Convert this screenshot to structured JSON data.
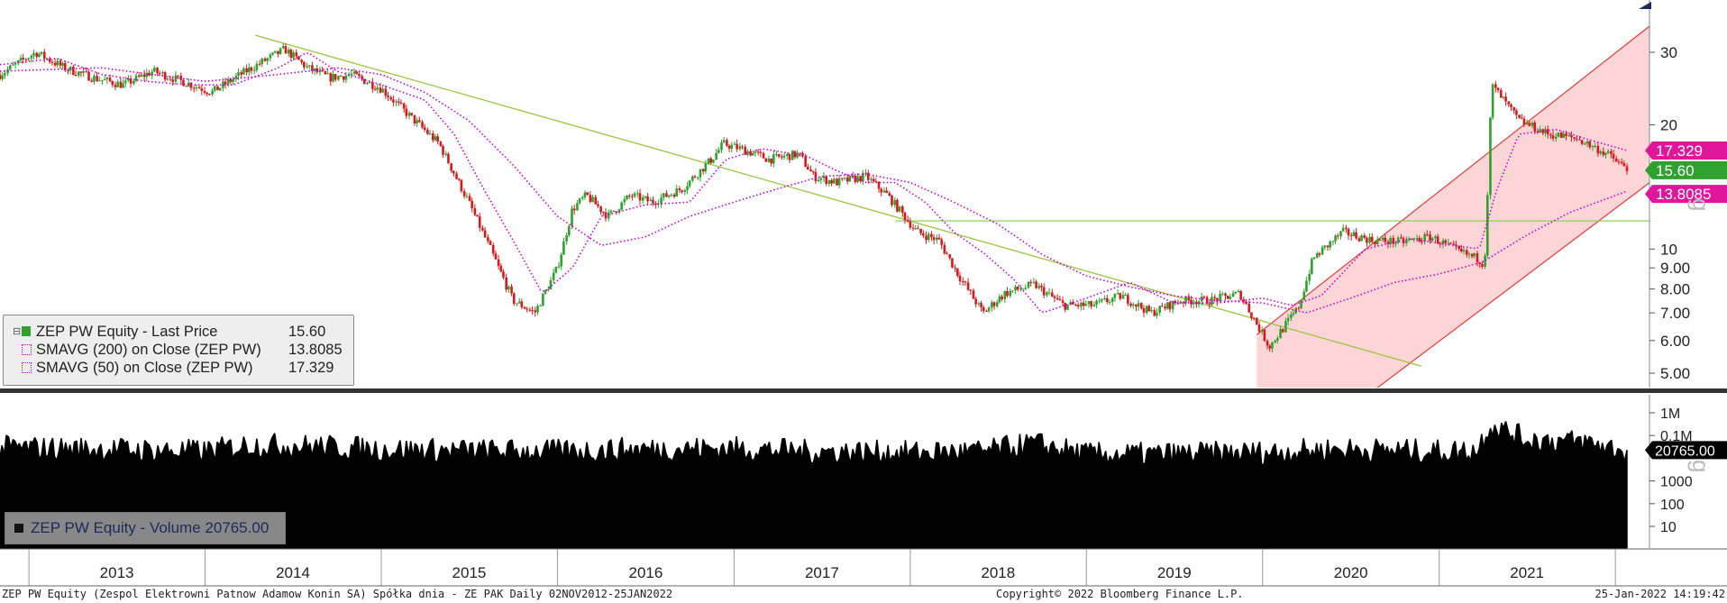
{
  "chart_data": [
    {
      "type": "line",
      "panel": "price",
      "scale": "log",
      "ylim": [
        4.5,
        36
      ],
      "yticks": [
        5,
        6,
        7,
        8,
        9,
        10,
        20,
        30
      ],
      "ytick_labels": [
        "5.00",
        "6.00",
        "7.00",
        "8.00",
        "9.00",
        "10",
        "20",
        "30"
      ],
      "years": [
        "2013",
        "2014",
        "2015",
        "2016",
        "2017",
        "2018",
        "2019",
        "2020",
        "2021"
      ],
      "x_range": [
        "2012-11-02",
        "2022-01-25"
      ],
      "series": [
        {
          "name": "ZEP PW Equity - Last Price",
          "style": "candles",
          "x": [
            "2012-11-02",
            "2013-01-15",
            "2013-03-15",
            "2013-05-15",
            "2013-07-15",
            "2013-09-15",
            "2013-11-15",
            "2014-01-15",
            "2014-03-15",
            "2014-05-01",
            "2014-06-15",
            "2014-08-01",
            "2014-09-15",
            "2014-11-01",
            "2015-01-01",
            "2015-03-01",
            "2015-05-01",
            "2015-07-01",
            "2015-08-15",
            "2015-10-01",
            "2015-11-15",
            "2016-01-01",
            "2016-02-01",
            "2016-03-01",
            "2016-04-15",
            "2016-06-01",
            "2016-07-15",
            "2016-09-15",
            "2016-11-15",
            "2016-12-10",
            "2017-01-15",
            "2017-03-15",
            "2017-05-15",
            "2017-06-15",
            "2017-08-01",
            "2017-10-01",
            "2017-11-15",
            "2018-01-15",
            "2018-03-01",
            "2018-04-15",
            "2018-06-01",
            "2018-07-15",
            "2018-09-15",
            "2018-11-15",
            "2019-01-15",
            "2019-03-15",
            "2019-05-15",
            "2019-07-15",
            "2019-09-15",
            "2019-11-15",
            "2020-01-15",
            "2020-03-15",
            "2020-04-15",
            "2020-06-15",
            "2020-08-15",
            "2020-10-15",
            "2020-12-15",
            "2021-02-15",
            "2021-03-20",
            "2021-04-05",
            "2021-04-20",
            "2021-06-15",
            "2021-08-15",
            "2021-10-15",
            "2021-12-15",
            "2022-01-25"
          ],
          "values": [
            26.5,
            30.0,
            27.5,
            26.0,
            25.0,
            27.0,
            25.5,
            24.0,
            26.5,
            28.5,
            30.5,
            27.5,
            26.0,
            26.5,
            24.5,
            21.0,
            18.0,
            13.0,
            10.0,
            7.5,
            7.0,
            9.0,
            12.5,
            13.5,
            12.0,
            13.5,
            13.0,
            14.0,
            16.5,
            18.0,
            17.5,
            16.5,
            17.0,
            15.0,
            14.5,
            15.0,
            13.5,
            11.0,
            10.5,
            8.5,
            7.0,
            7.8,
            8.2,
            7.3,
            7.3,
            7.7,
            7.0,
            7.5,
            7.5,
            7.8,
            5.8,
            7.2,
            9.5,
            11.0,
            10.5,
            10.4,
            10.7,
            9.8,
            9.5,
            9.2,
            25.0,
            20.5,
            19.0,
            18.5,
            17.0,
            15.6
          ]
        },
        {
          "name": "SMAVG (200)  on Close (ZEP PW)",
          "style": "dotted",
          "x": [
            "2012-11-02",
            "2013-06-01",
            "2014-01-01",
            "2014-06-01",
            "2014-10-01",
            "2015-01-01",
            "2015-04-01",
            "2015-07-01",
            "2015-10-01",
            "2016-01-01",
            "2016-04-01",
            "2016-07-01",
            "2016-10-01",
            "2017-01-01",
            "2017-04-01",
            "2017-07-01",
            "2017-10-01",
            "2018-01-01",
            "2018-04-01",
            "2018-07-01",
            "2018-10-01",
            "2019-01-01",
            "2019-04-01",
            "2019-07-01",
            "2019-10-01",
            "2020-01-01",
            "2020-04-01",
            "2020-07-01",
            "2020-10-01",
            "2021-01-01",
            "2021-04-01",
            "2021-07-01",
            "2021-10-01",
            "2022-01-25"
          ],
          "values": [
            27.0,
            27.5,
            25.5,
            26.5,
            27.5,
            26.5,
            24.0,
            20.5,
            16.0,
            12.0,
            10.2,
            10.7,
            12.0,
            13.0,
            14.0,
            15.0,
            15.2,
            14.5,
            13.0,
            11.5,
            9.7,
            8.6,
            8.1,
            7.7,
            7.5,
            7.4,
            7.0,
            7.6,
            8.3,
            8.7,
            9.3,
            10.8,
            12.3,
            13.8085
          ]
        },
        {
          "name": "SMAVG (50)  on Close (ZEP PW)",
          "style": "dotted",
          "x": [
            "2012-11-02",
            "2013-03-01",
            "2013-06-01",
            "2013-09-01",
            "2013-12-01",
            "2014-03-01",
            "2014-06-01",
            "2014-08-01",
            "2014-10-01",
            "2015-01-01",
            "2015-04-01",
            "2015-06-01",
            "2015-08-01",
            "2015-10-01",
            "2015-12-01",
            "2016-02-01",
            "2016-04-01",
            "2016-07-01",
            "2016-10-01",
            "2016-12-15",
            "2017-03-01",
            "2017-06-01",
            "2017-08-01",
            "2017-10-01",
            "2017-12-01",
            "2018-02-01",
            "2018-04-01",
            "2018-06-01",
            "2018-08-01",
            "2018-10-01",
            "2019-01-01",
            "2019-04-01",
            "2019-07-01",
            "2019-10-01",
            "2020-01-01",
            "2020-03-01",
            "2020-05-01",
            "2020-08-01",
            "2020-11-01",
            "2021-02-01",
            "2021-03-25",
            "2021-05-01",
            "2021-06-15",
            "2021-09-01",
            "2021-11-01",
            "2022-01-25"
          ],
          "values": [
            28.0,
            29.0,
            26.5,
            25.5,
            25.0,
            25.0,
            27.5,
            30.0,
            27.0,
            25.0,
            23.0,
            19.0,
            14.0,
            10.5,
            7.8,
            9.0,
            12.0,
            12.8,
            13.0,
            16.5,
            17.5,
            16.8,
            15.5,
            14.5,
            14.5,
            13.0,
            11.0,
            9.8,
            8.5,
            7.0,
            7.6,
            8.3,
            7.4,
            7.4,
            7.6,
            7.3,
            7.7,
            10.0,
            10.6,
            10.2,
            10.0,
            14.0,
            19.0,
            19.5,
            18.5,
            17.329
          ]
        }
      ],
      "trendlines": {
        "color": "#9dc441",
        "descending": {
          "from": {
            "x": "2014-04-15",
            "y": 33.0
          },
          "to": {
            "x": "2020-11-25",
            "y": 5.2
          }
        },
        "horizontal": {
          "y": 11.7,
          "from_x": "2017-12-01",
          "to_x": "2022-03-25"
        },
        "channel": {
          "upper_from": {
            "x": "2019-12-20",
            "y": 6.2
          },
          "upper_to": {
            "x": "2022-03-30",
            "y": 36.0
          },
          "lower_from": {
            "x": "2020-08-25",
            "y": 4.6
          },
          "lower_to": {
            "x": "2022-03-30",
            "y": 15.0
          },
          "fill": "#fcd6d6"
        }
      },
      "value_labels": [
        {
          "text": "17.329",
          "value": 17.329,
          "color": "#e0179b"
        },
        {
          "text": "15.60",
          "value": 15.6,
          "color": "#2ea12e"
        },
        {
          "text": "13.8085",
          "value": 13.8085,
          "color": "#e0179b"
        }
      ],
      "colors": {
        "up": "#2ea12e",
        "down": "#d7191c",
        "sma": "#cc00cc"
      }
    },
    {
      "type": "bar",
      "panel": "volume",
      "scale": "log",
      "ylim": [
        3,
        2000000
      ],
      "yticks": [
        10,
        100,
        1000,
        100000,
        1000000
      ],
      "ytick_labels": [
        "10",
        "100",
        "1000",
        "0.1M",
        "1M"
      ],
      "series": [
        {
          "name": "ZEP PW Equity - Volume",
          "x": [
            "2012-11-02",
            "2013-06-01",
            "2014-01-01",
            "2014-04-01",
            "2014-08-01",
            "2015-01-01",
            "2015-06-01",
            "2016-01-01",
            "2016-06-01",
            "2017-01-01",
            "2017-06-01",
            "2018-01-01",
            "2018-06-01",
            "2018-09-15",
            "2019-01-01",
            "2019-06-01",
            "2020-01-01",
            "2020-06-01",
            "2021-01-01",
            "2021-03-20",
            "2021-04-15",
            "2021-07-01",
            "2021-11-01",
            "2022-01-25"
          ],
          "values": [
            30000,
            25000,
            20000,
            40000,
            35000,
            25000,
            22000,
            20000,
            25000,
            28000,
            20000,
            18000,
            20000,
            45000,
            15000,
            15000,
            18000,
            25000,
            20000,
            22000,
            300000,
            70000,
            50000,
            20765
          ]
        }
      ],
      "color": "#000000",
      "last_label": {
        "text": "20765.00",
        "value": 20765
      }
    }
  ],
  "legend": {
    "items": [
      {
        "label": "ZEP PW Equity - Last Price",
        "value": "15.60",
        "swatch": "solid"
      },
      {
        "label": "SMAVG (200)  on Close (ZEP PW)",
        "value": "13.8085",
        "swatch": "dotted"
      },
      {
        "label": "SMAVG (50)  on Close (ZEP PW)",
        "value": "17.329",
        "swatch": "dotted"
      }
    ],
    "volume_label": "ZEP PW Equity - Volume 20765.00"
  },
  "footer": {
    "left": "ZEP PW Equity (Zespol Elektrowni Patnow Adamow Konin SA) Spółka dnia - ZE PAK  Daily 02NOV2012-25JAN2022",
    "center": "Copyright© 2022 Bloomberg Finance L.P.",
    "right": "25-Jan-2022 14:19:42"
  }
}
